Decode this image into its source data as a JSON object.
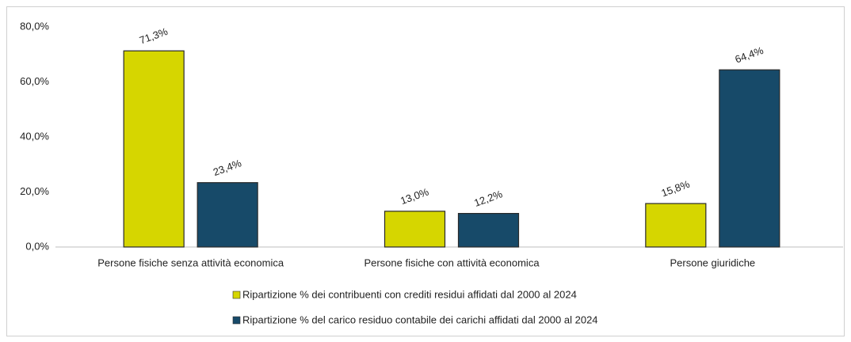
{
  "chart_data": {
    "type": "bar",
    "categories": [
      "Persone fisiche senza attività economica",
      "Persone fisiche con attività economica",
      "Persone giuridiche"
    ],
    "series": [
      {
        "name": "Ripartizione % dei contribuenti con crediti residui affidati dal 2000 al 2024",
        "color": "#d6d600",
        "values": [
          71.3,
          13.0,
          15.8
        ],
        "value_labels": [
          "71,3%",
          "13,0%",
          "15,8%"
        ]
      },
      {
        "name": "Ripartizione % del carico residuo contabile dei carichi affidati dal 2000 al 2024",
        "color": "#174a69",
        "values": [
          23.4,
          12.2,
          64.4
        ],
        "value_labels": [
          "23,4%",
          "12,2%",
          "64,4%"
        ]
      }
    ],
    "ylim": [
      0,
      80
    ],
    "yticks": [
      {
        "value": 0,
        "label": "0,0%"
      },
      {
        "value": 20,
        "label": "20,0%"
      },
      {
        "value": 40,
        "label": "40,0%"
      },
      {
        "value": 60,
        "label": "60,0%"
      },
      {
        "value": 80,
        "label": "80,0%"
      }
    ],
    "grid": false,
    "legend": "bottom"
  }
}
